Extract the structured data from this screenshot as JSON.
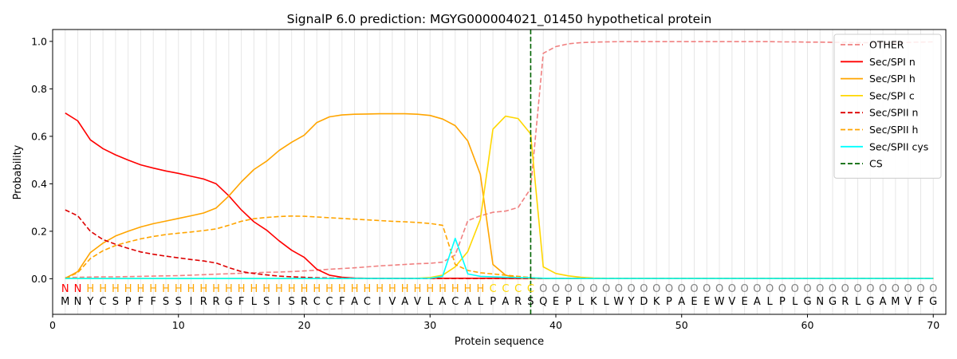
{
  "chart_data": {
    "type": "line",
    "title": "SignalP 6.0 prediction: MGYG000004021_01450 hypothetical protein",
    "xlabel": "Protein sequence",
    "ylabel": "Probability",
    "xlim": [
      0,
      71
    ],
    "ylim": [
      -0.15,
      1.05
    ],
    "xticks": [
      0,
      10,
      20,
      30,
      40,
      50,
      60,
      70
    ],
    "yticks": [
      0.0,
      0.2,
      0.4,
      0.6,
      0.8,
      1.0
    ],
    "ytick_labels": [
      "0.0",
      "0.2",
      "0.4",
      "0.6",
      "0.8",
      "1.0"
    ],
    "vertical_grid": "every position (1-70), light gray",
    "legend_placement": "top-right",
    "sequence": "MNYCSPFFSSIRRGFLSISRCCFACIVAVLACALPARSQEPLKLWYDKPAEEWVEALPLGNGRLGAMVFG",
    "labels": "NNHHHHHHHHHHHHHHHHHHHHHHHHHHHHHHHHCCCCOOOOOOOOOOOOOOOOOOOOOOOOOOOOOOOO",
    "label_colors": {
      "N": "#ff0000",
      "H": "#ffa500",
      "C": "#ffd700",
      "O": "#808080"
    },
    "cleavage_site": 38,
    "series": [
      {
        "name": "OTHER",
        "color": "#f08080",
        "dash": "dashed",
        "values": [
          0.005,
          0.006,
          0.007,
          0.008,
          0.008,
          0.009,
          0.01,
          0.011,
          0.012,
          0.013,
          0.015,
          0.017,
          0.019,
          0.021,
          0.023,
          0.025,
          0.027,
          0.028,
          0.03,
          0.033,
          0.036,
          0.04,
          0.043,
          0.046,
          0.05,
          0.054,
          0.057,
          0.06,
          0.063,
          0.065,
          0.07,
          0.1,
          0.245,
          0.265,
          0.28,
          0.285,
          0.3,
          0.38,
          0.95,
          0.978,
          0.99,
          0.995,
          0.997,
          0.998,
          0.999,
          0.999,
          0.999,
          0.999,
          0.999,
          0.999,
          0.999,
          0.999,
          0.999,
          0.999,
          0.999,
          0.999,
          0.999,
          0.998,
          0.998,
          0.997,
          0.997,
          0.996,
          0.996,
          0.995,
          0.995,
          0.995,
          0.995,
          0.996,
          0.997,
          0.998
        ]
      },
      {
        "name": "Sec/SPI n",
        "color": "#ff0000",
        "dash": "solid",
        "values": [
          0.698,
          0.665,
          0.585,
          0.548,
          0.522,
          0.5,
          0.48,
          0.466,
          0.454,
          0.444,
          0.432,
          0.42,
          0.4,
          0.35,
          0.29,
          0.24,
          0.205,
          0.16,
          0.12,
          0.09,
          0.04,
          0.015,
          0.006,
          0.003,
          0.002,
          0.002,
          0.002,
          0.002,
          0.002,
          0.002,
          0.002,
          0.002,
          0.002,
          0.002,
          0.002,
          0.001,
          0.001,
          0.001,
          0.001,
          0.001,
          0.001,
          0.001,
          0.001,
          0.001,
          0.001,
          0.001,
          0.001,
          0.001,
          0.001,
          0.001,
          0.001,
          0.001,
          0.001,
          0.001,
          0.001,
          0.001,
          0.001,
          0.001,
          0.001,
          0.001,
          0.001,
          0.001,
          0.001,
          0.001,
          0.001,
          0.001,
          0.001,
          0.001,
          0.001,
          0.001
        ]
      },
      {
        "name": "Sec/SPI h",
        "color": "#ffa500",
        "dash": "solid",
        "values": [
          0.002,
          0.03,
          0.11,
          0.15,
          0.18,
          0.2,
          0.218,
          0.232,
          0.243,
          0.254,
          0.265,
          0.277,
          0.298,
          0.348,
          0.408,
          0.46,
          0.495,
          0.54,
          0.575,
          0.605,
          0.658,
          0.682,
          0.69,
          0.693,
          0.694,
          0.695,
          0.695,
          0.695,
          0.693,
          0.688,
          0.673,
          0.645,
          0.58,
          0.44,
          0.06,
          0.015,
          0.003,
          0.001,
          0.001,
          0.001,
          0.001,
          0.001,
          0.001,
          0.001,
          0.001,
          0.001,
          0.001,
          0.001,
          0.001,
          0.001,
          0.001,
          0.001,
          0.001,
          0.001,
          0.001,
          0.001,
          0.001,
          0.001,
          0.001,
          0.001,
          0.001,
          0.001,
          0.001,
          0.001,
          0.001,
          0.001,
          0.001,
          0.001,
          0.001,
          0.001
        ]
      },
      {
        "name": "Sec/SPI c",
        "color": "#ffd700",
        "dash": "solid",
        "values": [
          0.001,
          0.001,
          0.001,
          0.001,
          0.001,
          0.001,
          0.001,
          0.001,
          0.001,
          0.001,
          0.001,
          0.001,
          0.001,
          0.001,
          0.001,
          0.001,
          0.001,
          0.001,
          0.001,
          0.001,
          0.001,
          0.001,
          0.001,
          0.001,
          0.001,
          0.001,
          0.001,
          0.001,
          0.002,
          0.005,
          0.015,
          0.05,
          0.115,
          0.25,
          0.63,
          0.685,
          0.675,
          0.61,
          0.05,
          0.022,
          0.012,
          0.006,
          0.003,
          0.002,
          0.001,
          0.001,
          0.001,
          0.001,
          0.001,
          0.001,
          0.001,
          0.001,
          0.001,
          0.001,
          0.001,
          0.001,
          0.001,
          0.001,
          0.001,
          0.001,
          0.001,
          0.001,
          0.001,
          0.001,
          0.001,
          0.001,
          0.001,
          0.001,
          0.001,
          0.001
        ]
      },
      {
        "name": "Sec/SPII n",
        "color": "#dd0000",
        "dash": "dashed",
        "values": [
          0.29,
          0.265,
          0.2,
          0.165,
          0.145,
          0.128,
          0.113,
          0.103,
          0.095,
          0.088,
          0.081,
          0.075,
          0.066,
          0.047,
          0.03,
          0.022,
          0.016,
          0.011,
          0.008,
          0.006,
          0.004,
          0.003,
          0.002,
          0.002,
          0.001,
          0.001,
          0.001,
          0.001,
          0.001,
          0.001,
          0.001,
          0.001,
          0.001,
          0.001,
          0.001,
          0.001,
          0.001,
          0.001,
          0.001,
          0.001,
          0.001,
          0.001,
          0.001,
          0.001,
          0.001,
          0.001,
          0.001,
          0.001,
          0.001,
          0.001,
          0.001,
          0.001,
          0.001,
          0.001,
          0.001,
          0.001,
          0.001,
          0.001,
          0.001,
          0.001,
          0.001,
          0.001,
          0.001,
          0.001,
          0.001,
          0.001,
          0.001,
          0.001,
          0.001,
          0.001
        ]
      },
      {
        "name": "Sec/SPII h",
        "color": "#ffa500",
        "dash": "dashed",
        "values": [
          0.002,
          0.025,
          0.085,
          0.118,
          0.14,
          0.155,
          0.168,
          0.178,
          0.186,
          0.192,
          0.197,
          0.203,
          0.21,
          0.225,
          0.242,
          0.253,
          0.258,
          0.262,
          0.264,
          0.263,
          0.26,
          0.257,
          0.254,
          0.251,
          0.248,
          0.245,
          0.242,
          0.24,
          0.237,
          0.233,
          0.225,
          0.06,
          0.035,
          0.025,
          0.02,
          0.015,
          0.01,
          0.005,
          0.002,
          0.001,
          0.001,
          0.001,
          0.001,
          0.001,
          0.001,
          0.001,
          0.001,
          0.001,
          0.001,
          0.001,
          0.001,
          0.001,
          0.001,
          0.001,
          0.001,
          0.001,
          0.001,
          0.001,
          0.001,
          0.001,
          0.001,
          0.001,
          0.001,
          0.001,
          0.001,
          0.001,
          0.001,
          0.001,
          0.001,
          0.001
        ]
      },
      {
        "name": "Sec/SPII cys",
        "color": "#00ffff",
        "dash": "solid",
        "values": [
          0.001,
          0.001,
          0.001,
          0.001,
          0.001,
          0.001,
          0.001,
          0.001,
          0.001,
          0.001,
          0.001,
          0.001,
          0.001,
          0.001,
          0.001,
          0.001,
          0.001,
          0.001,
          0.001,
          0.001,
          0.001,
          0.001,
          0.001,
          0.001,
          0.001,
          0.001,
          0.001,
          0.001,
          0.001,
          0.002,
          0.01,
          0.17,
          0.02,
          0.01,
          0.008,
          0.006,
          0.005,
          0.004,
          0.002,
          0.001,
          0.001,
          0.001,
          0.001,
          0.001,
          0.001,
          0.001,
          0.001,
          0.001,
          0.001,
          0.001,
          0.001,
          0.001,
          0.001,
          0.001,
          0.001,
          0.001,
          0.001,
          0.001,
          0.001,
          0.001,
          0.001,
          0.001,
          0.001,
          0.001,
          0.001,
          0.001,
          0.001,
          0.001,
          0.001,
          0.001
        ]
      }
    ],
    "cs_legend": {
      "name": "CS",
      "color": "#006400",
      "dash": "dashed"
    }
  }
}
